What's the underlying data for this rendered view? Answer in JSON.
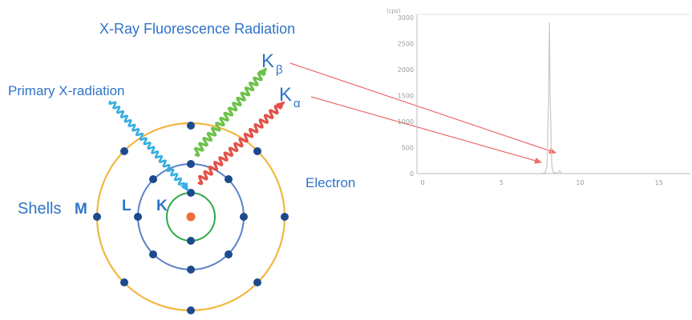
{
  "diagram": {
    "title": "X-Ray Fluorescence Radiation",
    "primary_label": "Primary X-radiation",
    "k_beta": {
      "main": "K",
      "sub": "β"
    },
    "k_alpha": {
      "main": "K",
      "sub": "α"
    },
    "shells_label": "Shells",
    "shell_m": "M",
    "shell_l": "L",
    "shell_k": "K",
    "electron_label": "Electron",
    "colors": {
      "text_blue": "#2f74c7",
      "shell_m": "#f2b742",
      "shell_l": "#5b82c8",
      "shell_k": "#2ea84a",
      "electron": "#1d4a8c",
      "nucleus": "#f26b3a",
      "primary_ray": "#35aee2",
      "k_beta_ray": "#6cc24a",
      "k_alpha_ray": "#e2524a",
      "pointer_arrow": "#ea6b6b"
    }
  },
  "spectrum": {
    "unit_label": "(cps)",
    "chart_data": {
      "type": "line",
      "title": "",
      "xlabel": "",
      "ylabel": "(cps)",
      "xlim": [
        0,
        17
      ],
      "ylim": [
        0,
        3000
      ],
      "x_ticks": [
        "0",
        "5",
        "10",
        "15"
      ],
      "y_ticks": [
        "0",
        "500",
        "1000",
        "1500",
        "2000",
        "2500",
        "3000"
      ],
      "series": [
        {
          "x": [
            0,
            7.5,
            7.8,
            7.9,
            8.0,
            8.05,
            8.1,
            8.2,
            8.3,
            8.6,
            8.7,
            8.8,
            9.0,
            17
          ],
          "values": [
            0,
            0,
            20,
            150,
            1500,
            2900,
            1500,
            150,
            20,
            10,
            60,
            10,
            0,
            0
          ]
        }
      ]
    }
  }
}
